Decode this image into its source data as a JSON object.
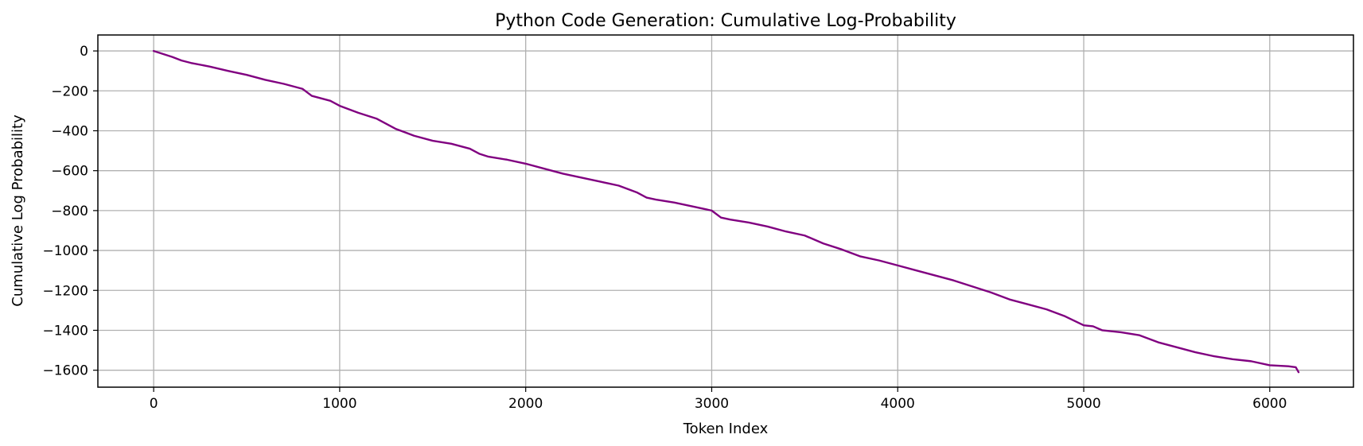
{
  "chart_data": {
    "type": "line",
    "title": "Python Code Generation: Cumulative Log-Probability",
    "xlabel": "Token Index",
    "ylabel": "Cumulative Log Probability",
    "xlim": [
      -300,
      6450
    ],
    "ylim": [
      -1685,
      80
    ],
    "xticks": [
      0,
      1000,
      2000,
      3000,
      4000,
      5000,
      6000
    ],
    "yticks": [
      0,
      -200,
      -400,
      -600,
      -800,
      -1000,
      -1200,
      -1400,
      -1600
    ],
    "xtick_labels": [
      "0",
      "1000",
      "2000",
      "3000",
      "4000",
      "5000",
      "6000"
    ],
    "ytick_labels": [
      "0",
      "−200",
      "−400",
      "−600",
      "−800",
      "−1000",
      "−1200",
      "−1400",
      "−1600"
    ],
    "grid": true,
    "series": [
      {
        "color": "#800080",
        "x": [
          0,
          50,
          100,
          150,
          200,
          300,
          400,
          500,
          600,
          700,
          800,
          850,
          950,
          1000,
          1100,
          1200,
          1300,
          1400,
          1500,
          1600,
          1700,
          1750,
          1800,
          1900,
          2000,
          2100,
          2200,
          2300,
          2400,
          2500,
          2600,
          2650,
          2700,
          2800,
          2900,
          3000,
          3050,
          3100,
          3200,
          3300,
          3400,
          3500,
          3600,
          3700,
          3800,
          3900,
          4000,
          4100,
          4200,
          4300,
          4400,
          4500,
          4600,
          4700,
          4800,
          4900,
          5000,
          5050,
          5100,
          5200,
          5300,
          5400,
          5500,
          5600,
          5700,
          5800,
          5900,
          6000,
          6100,
          6140,
          6155
        ],
        "y": [
          0,
          -15,
          -30,
          -48,
          -60,
          -78,
          -100,
          -120,
          -145,
          -165,
          -190,
          -225,
          -250,
          -275,
          -310,
          -340,
          -390,
          -425,
          -450,
          -465,
          -490,
          -515,
          -530,
          -545,
          -565,
          -590,
          -615,
          -635,
          -655,
          -675,
          -710,
          -735,
          -745,
          -760,
          -780,
          -800,
          -835,
          -845,
          -860,
          -880,
          -905,
          -925,
          -965,
          -995,
          -1030,
          -1050,
          -1075,
          -1100,
          -1125,
          -1150,
          -1180,
          -1210,
          -1245,
          -1270,
          -1295,
          -1330,
          -1375,
          -1380,
          -1400,
          -1410,
          -1425,
          -1460,
          -1485,
          -1510,
          -1530,
          -1545,
          -1555,
          -1575,
          -1580,
          -1585,
          -1610
        ]
      }
    ]
  }
}
